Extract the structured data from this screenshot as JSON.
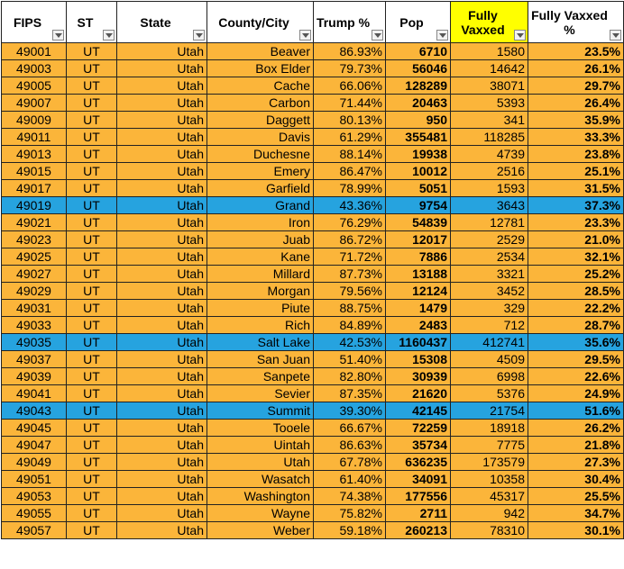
{
  "table": {
    "header": [
      "FIPS",
      "ST",
      "State",
      "County/City",
      "Trump %",
      "Pop",
      "Fully Vaxxed",
      "Fully Vaxxed %"
    ],
    "header_fills": [
      "#ffffff",
      "#ffffff",
      "#ffffff",
      "#ffffff",
      "#ffffff",
      "#ffffff",
      "#ffff00",
      "#ffffff"
    ],
    "rows": [
      {
        "fill": "#fbb53a",
        "cells": [
          "49001",
          "UT",
          "Utah",
          "Beaver",
          "86.93%",
          "6710",
          "1580",
          "23.5%"
        ]
      },
      {
        "fill": "#fbb53a",
        "cells": [
          "49003",
          "UT",
          "Utah",
          "Box Elder",
          "79.73%",
          "56046",
          "14642",
          "26.1%"
        ]
      },
      {
        "fill": "#fbb53a",
        "cells": [
          "49005",
          "UT",
          "Utah",
          "Cache",
          "66.06%",
          "128289",
          "38071",
          "29.7%"
        ]
      },
      {
        "fill": "#fbb53a",
        "cells": [
          "49007",
          "UT",
          "Utah",
          "Carbon",
          "71.44%",
          "20463",
          "5393",
          "26.4%"
        ]
      },
      {
        "fill": "#fbb53a",
        "cells": [
          "49009",
          "UT",
          "Utah",
          "Daggett",
          "80.13%",
          "950",
          "341",
          "35.9%"
        ]
      },
      {
        "fill": "#fbb53a",
        "cells": [
          "49011",
          "UT",
          "Utah",
          "Davis",
          "61.29%",
          "355481",
          "118285",
          "33.3%"
        ]
      },
      {
        "fill": "#fbb53a",
        "cells": [
          "49013",
          "UT",
          "Utah",
          "Duchesne",
          "88.14%",
          "19938",
          "4739",
          "23.8%"
        ]
      },
      {
        "fill": "#fbb53a",
        "cells": [
          "49015",
          "UT",
          "Utah",
          "Emery",
          "86.47%",
          "10012",
          "2516",
          "25.1%"
        ]
      },
      {
        "fill": "#fbb53a",
        "cells": [
          "49017",
          "UT",
          "Utah",
          "Garfield",
          "78.99%",
          "5051",
          "1593",
          "31.5%"
        ]
      },
      {
        "fill": "#26a3df",
        "cells": [
          "49019",
          "UT",
          "Utah",
          "Grand",
          "43.36%",
          "9754",
          "3643",
          "37.3%"
        ]
      },
      {
        "fill": "#fbb53a",
        "cells": [
          "49021",
          "UT",
          "Utah",
          "Iron",
          "76.29%",
          "54839",
          "12781",
          "23.3%"
        ]
      },
      {
        "fill": "#fbb53a",
        "cells": [
          "49023",
          "UT",
          "Utah",
          "Juab",
          "86.72%",
          "12017",
          "2529",
          "21.0%"
        ]
      },
      {
        "fill": "#fbb53a",
        "cells": [
          "49025",
          "UT",
          "Utah",
          "Kane",
          "71.72%",
          "7886",
          "2534",
          "32.1%"
        ]
      },
      {
        "fill": "#fbb53a",
        "cells": [
          "49027",
          "UT",
          "Utah",
          "Millard",
          "87.73%",
          "13188",
          "3321",
          "25.2%"
        ]
      },
      {
        "fill": "#fbb53a",
        "cells": [
          "49029",
          "UT",
          "Utah",
          "Morgan",
          "79.56%",
          "12124",
          "3452",
          "28.5%"
        ]
      },
      {
        "fill": "#fbb53a",
        "cells": [
          "49031",
          "UT",
          "Utah",
          "Piute",
          "88.75%",
          "1479",
          "329",
          "22.2%"
        ]
      },
      {
        "fill": "#fbb53a",
        "cells": [
          "49033",
          "UT",
          "Utah",
          "Rich",
          "84.89%",
          "2483",
          "712",
          "28.7%"
        ]
      },
      {
        "fill": "#26a3df",
        "cells": [
          "49035",
          "UT",
          "Utah",
          "Salt Lake",
          "42.53%",
          "1160437",
          "412741",
          "35.6%"
        ]
      },
      {
        "fill": "#fbb53a",
        "cells": [
          "49037",
          "UT",
          "Utah",
          "San Juan",
          "51.40%",
          "15308",
          "4509",
          "29.5%"
        ]
      },
      {
        "fill": "#fbb53a",
        "cells": [
          "49039",
          "UT",
          "Utah",
          "Sanpete",
          "82.80%",
          "30939",
          "6998",
          "22.6%"
        ]
      },
      {
        "fill": "#fbb53a",
        "cells": [
          "49041",
          "UT",
          "Utah",
          "Sevier",
          "87.35%",
          "21620",
          "5376",
          "24.9%"
        ]
      },
      {
        "fill": "#26a3df",
        "cells": [
          "49043",
          "UT",
          "Utah",
          "Summit",
          "39.30%",
          "42145",
          "21754",
          "51.6%"
        ]
      },
      {
        "fill": "#fbb53a",
        "cells": [
          "49045",
          "UT",
          "Utah",
          "Tooele",
          "66.67%",
          "72259",
          "18918",
          "26.2%"
        ]
      },
      {
        "fill": "#fbb53a",
        "cells": [
          "49047",
          "UT",
          "Utah",
          "Uintah",
          "86.63%",
          "35734",
          "7775",
          "21.8%"
        ]
      },
      {
        "fill": "#fbb53a",
        "cells": [
          "49049",
          "UT",
          "Utah",
          "Utah",
          "67.78%",
          "636235",
          "173579",
          "27.3%"
        ]
      },
      {
        "fill": "#fbb53a",
        "cells": [
          "49051",
          "UT",
          "Utah",
          "Wasatch",
          "61.40%",
          "34091",
          "10358",
          "30.4%"
        ]
      },
      {
        "fill": "#fbb53a",
        "cells": [
          "49053",
          "UT",
          "Utah",
          "Washington",
          "74.38%",
          "177556",
          "45317",
          "25.5%"
        ]
      },
      {
        "fill": "#fbb53a",
        "cells": [
          "49055",
          "UT",
          "Utah",
          "Wayne",
          "75.82%",
          "2711",
          "942",
          "34.7%"
        ]
      },
      {
        "fill": "#fbb53a",
        "cells": [
          "49057",
          "UT",
          "Utah",
          "Weber",
          "59.18%",
          "260213",
          "78310",
          "30.1%"
        ]
      }
    ]
  }
}
